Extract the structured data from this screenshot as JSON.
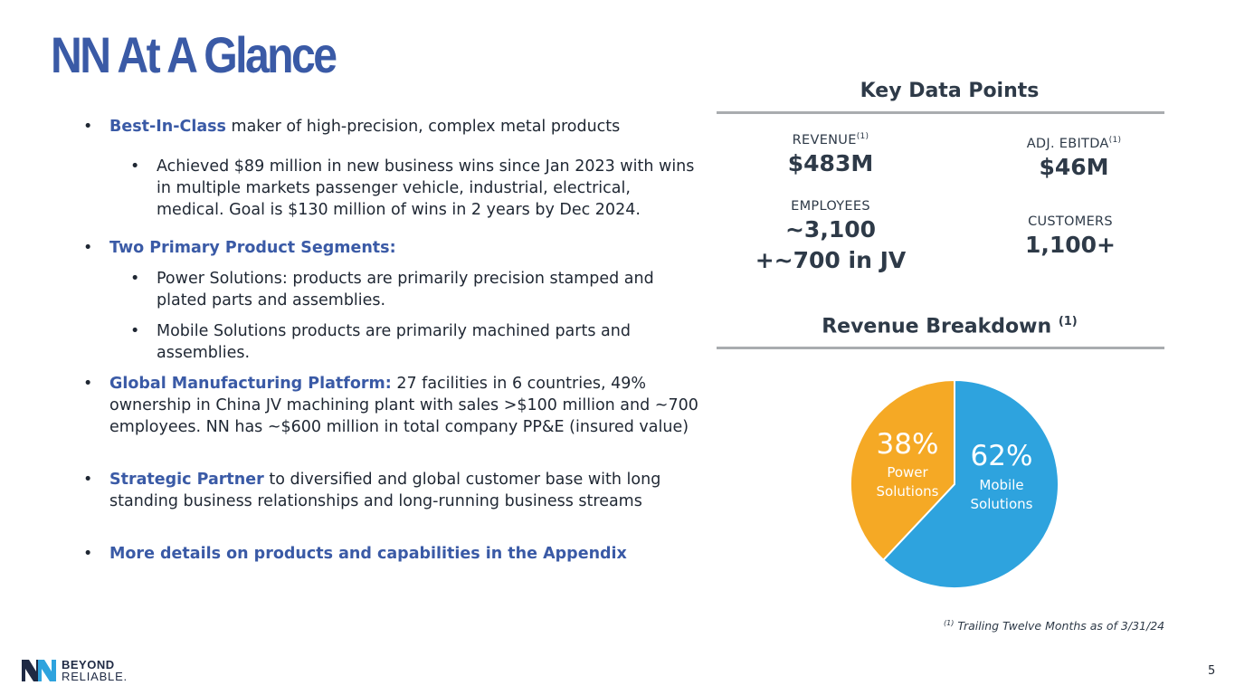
{
  "slide": {
    "title": "NN At A Glance",
    "page_number": "5"
  },
  "bullets": {
    "b1": {
      "highlight": "Best-In-Class",
      "text": " maker of high-precision, complex metal products"
    },
    "b1_sub": "Achieved $89 million in new business wins since Jan 2023 with wins in multiple markets passenger vehicle, industrial, electrical, medical. Goal is $130 million of wins in 2 years by Dec 2024.",
    "b2": {
      "highlight": "Two Primary Product Segments:"
    },
    "b2_sub1": "Power Solutions: products are primarily precision stamped and plated parts and assemblies.",
    "b2_sub2": "Mobile Solutions products are primarily machined parts and assemblies.",
    "b3": {
      "highlight": "Global Manufacturing Platform:",
      "text": " 27 facilities in 6 countries, 49% ownership in China JV machining plant with sales >$100 million and ~700 employees. NN has ~$600 million in total company PP&E (insured value)"
    },
    "b4": {
      "highlight": "Strategic Partner",
      "text": " to diversified and global customer base with long standing business relationships and long-running business streams"
    },
    "b5": {
      "highlight": "More details on products and capabilities in the Appendix"
    }
  },
  "key_data": {
    "heading": "Key Data Points",
    "revenue": {
      "label": "REVENUE",
      "sup": "(1)",
      "value": "$483M"
    },
    "ebitda": {
      "label": "ADJ. EBITDA",
      "sup": "(1)",
      "value": "$46M"
    },
    "employees": {
      "label": "EMPLOYEES",
      "value1": "~3,100",
      "value2": "+~700 in JV"
    },
    "customers": {
      "label": "CUSTOMERS",
      "value": "1,100+"
    }
  },
  "revenue_breakdown": {
    "heading": "Revenue Breakdown",
    "heading_sup": "(1)",
    "slices": [
      {
        "name_line1": "Mobile",
        "name_line2": "Solutions",
        "pct_label": "62%",
        "value": 62,
        "color": "#2ea3de"
      },
      {
        "name_line1": "Power",
        "name_line2": "Solutions",
        "pct_label": "38%",
        "value": 38,
        "color": "#f5a925"
      }
    ]
  },
  "footnote": {
    "sup": "(1)",
    "text": " Trailing Twelve Months as of 3/31/24"
  },
  "logo": {
    "line1": "BEYOND",
    "line2": "RELIABLE."
  }
}
